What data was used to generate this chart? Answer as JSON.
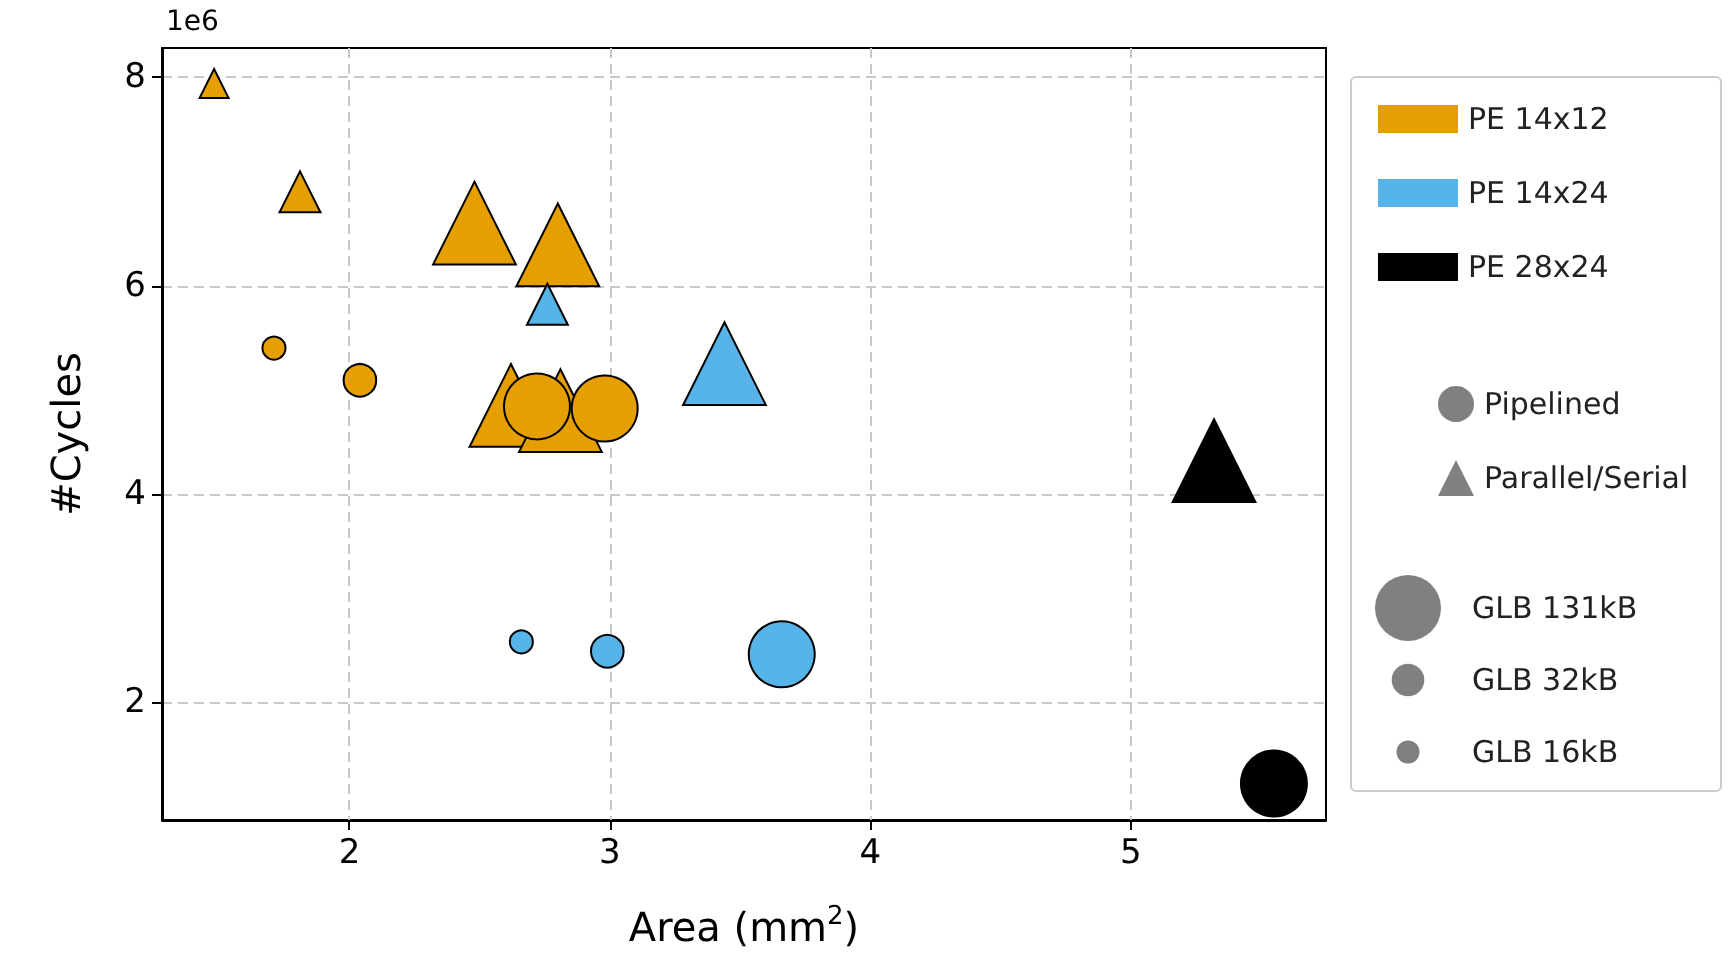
{
  "chart_data": {
    "type": "bubble",
    "xlabel": "Area (mm$^{2}$)",
    "ylabel": "#Cycles",
    "annotations": [
      "1e6"
    ],
    "xlim": [
      1.28,
      5.75
    ],
    "xticks": [
      2,
      3,
      4,
      5
    ],
    "ylim": [
      0.87,
      8.28
    ],
    "yticks": [
      2,
      4,
      6,
      8
    ],
    "grid": true,
    "legend": "right",
    "size_legend": [
      {
        "value": 131,
        "label": "GLB 131kB"
      },
      {
        "value": 32,
        "label": "GLB 32kB"
      },
      {
        "value": 16,
        "label": "GLB 16kB"
      }
    ],
    "series": [
      {
        "name": "PE 14x12",
        "color": "#e69f00",
        "marker": "triangle",
        "x": [
          1.48,
          1.81,
          2.48,
          2.8,
          2.62,
          2.81
        ],
        "values": [
          7.94,
          6.9,
          6.6,
          6.39,
          4.85,
          4.8
        ],
        "sizes": [
          16,
          32,
          131,
          131,
          131,
          131
        ]
      },
      {
        "color": "#e69f00",
        "marker": "circle",
        "x": [
          1.71,
          2.04,
          2.72,
          2.98
        ],
        "values": [
          5.4,
          5.09,
          4.84,
          4.82
        ],
        "sizes": [
          16,
          32,
          131,
          131
        ]
      },
      {
        "name": "PE 14x24",
        "color": "#56b4e9",
        "marker": "triangle",
        "x": [
          2.76,
          3.44
        ],
        "values": [
          5.82,
          5.25
        ],
        "sizes": [
          32,
          131
        ]
      },
      {
        "color": "#56b4e9",
        "marker": "circle",
        "x": [
          2.66,
          2.99,
          3.66
        ],
        "values": [
          2.58,
          2.49,
          2.46
        ],
        "sizes": [
          16,
          32,
          131
        ]
      },
      {
        "name": "PE 28x24",
        "color": "#000000",
        "marker": "triangle",
        "x": [
          5.32
        ],
        "values": [
          4.32
        ],
        "sizes": [
          131
        ]
      },
      {
        "color": "#000000",
        "marker": "circle",
        "x": [
          5.55
        ],
        "values": [
          1.22
        ],
        "sizes": [
          131
        ]
      },
      {
        "name": "Pipelined",
        "color": "#808080",
        "marker": "circle"
      },
      {
        "name": "Parallel/Serial",
        "color": "#808080",
        "marker": "triangle"
      }
    ]
  }
}
